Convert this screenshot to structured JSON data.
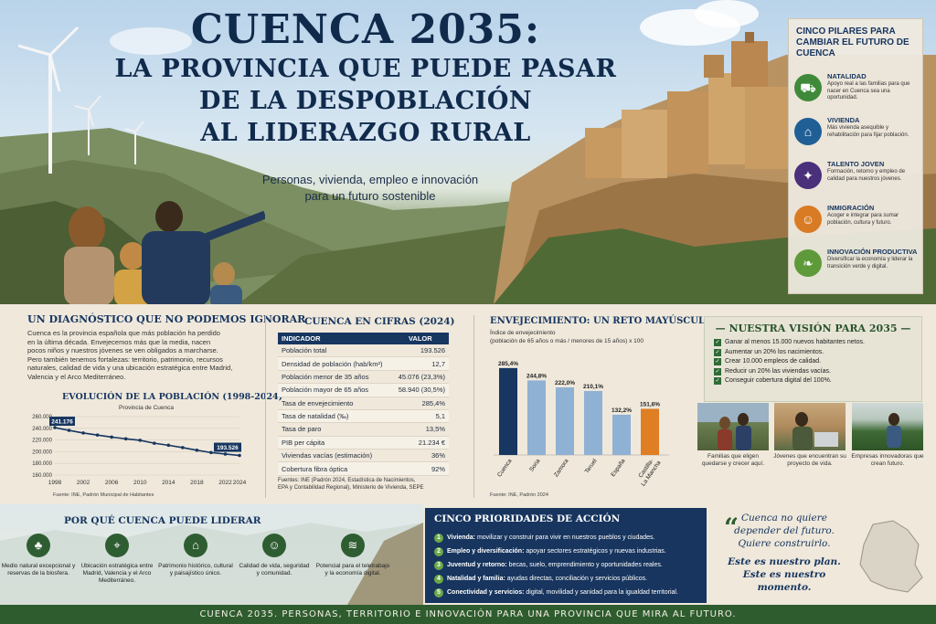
{
  "hero": {
    "title_line1": "CUENCA 2035:",
    "title_line2": "LA PROVINCIA QUE PUEDE PASAR",
    "title_line3": "DE LA DESPOBLACIÓN",
    "title_line4": "AL LIDERAZGO RURAL",
    "subtitle_line1": "Personas, vivienda, empleo e innovación",
    "subtitle_line2": "para un futuro sostenible"
  },
  "pillars": {
    "title": "CINCO PILARES PARA CAMBIAR EL FUTURO DE CUENCA",
    "items": [
      {
        "name": "NATALIDAD",
        "desc": "Apoyo real a las familias para que nacer en Cuenca sea una oportunidad.",
        "icon": "stroller-icon",
        "color": "#3f8a3a"
      },
      {
        "name": "VIVIENDA",
        "desc": "Más vivienda asequible y rehabilitación para fijar población.",
        "icon": "house-icon",
        "color": "#1f5f96"
      },
      {
        "name": "TALENTO JOVEN",
        "desc": "Formación, retorno y empleo de calidad para nuestros jóvenes.",
        "icon": "graduation-cap-icon",
        "color": "#4a2f7a"
      },
      {
        "name": "INMIGRACIÓN",
        "desc": "Acoger e integrar para sumar población, cultura y futuro.",
        "icon": "people-icon",
        "color": "#d97b24"
      },
      {
        "name": "INNOVACIÓN PRODUCTIVA",
        "desc": "Diversificar la economía y liderar la transición verde y digital.",
        "icon": "leaf-icon",
        "color": "#5e9a3a"
      }
    ]
  },
  "diagnostico": {
    "title": "UN DIAGNÓSTICO QUE NO PODEMOS IGNORAR",
    "lines": [
      "Cuenca es la provincia española que más población ha perdido",
      "en la última década. Envejecemos más que la media, nacen",
      "pocos niños y nuestros jóvenes se ven obligados a marcharse.",
      "Pero también tenemos fortalezas: territorio, patrimonio, recursos",
      "naturales, calidad de vida y una ubicación estratégica entre Madrid,",
      "Valencia y el Arco Mediterráneo."
    ]
  },
  "evolucion": {
    "title": "EVOLUCIÓN DE LA POBLACIÓN (1998-2024)",
    "subtitle": "Provincia de Cuenca",
    "source": "Fuente: INE, Padrón Municipal de Habitantes",
    "label_start": "241.176",
    "label_end": "193.526"
  },
  "cifras": {
    "title": "CUENCA EN CIFRAS (2024)",
    "col_indicator": "INDICADOR",
    "col_value": "VALOR",
    "rows": [
      [
        "Población total",
        "193.526"
      ],
      [
        "Densidad de población (hab/km²)",
        "12,7"
      ],
      [
        "Población menor de 35 años",
        "45.076 (23,3%)"
      ],
      [
        "Población mayor de 65 años",
        "58.940 (30,5%)"
      ],
      [
        "Tasa de envejecimiento",
        "285,4%"
      ],
      [
        "Tasa de natalidad (‰)",
        "5,1"
      ],
      [
        "Tasa de paro",
        "13,5%"
      ],
      [
        "PIB per cápita",
        "21.234 €"
      ],
      [
        "Viviendas vacías (estimación)",
        "36%"
      ],
      [
        "Cobertura fibra óptica",
        "92%"
      ]
    ],
    "source_line1": "Fuentes: INE (Padrón 2024, Estadística de Nacimientos,",
    "source_line2": "EPA y Contabilidad Regional), Ministerio de Vivienda, SEPE"
  },
  "chart_data": [
    {
      "type": "line",
      "title": "EVOLUCIÓN DE LA POBLACIÓN (1998-2024)",
      "subtitle": "Provincia de Cuenca",
      "x": [
        1998,
        2000,
        2002,
        2004,
        2006,
        2008,
        2010,
        2012,
        2014,
        2016,
        2018,
        2020,
        2022,
        2024
      ],
      "y": [
        241176,
        236500,
        232000,
        228500,
        225000,
        222000,
        219500,
        214500,
        211000,
        207000,
        202500,
        198500,
        196000,
        193526
      ],
      "x_ticks": [
        "1998",
        "2002",
        "2006",
        "2010",
        "2014",
        "2018",
        "2022",
        "2024"
      ],
      "y_ticks": [
        "260.000",
        "240.000",
        "220.000",
        "200.000",
        "180.000",
        "160.000"
      ],
      "ylim": [
        160000,
        260000
      ],
      "xlim": [
        1998,
        2024
      ]
    },
    {
      "type": "bar",
      "title": "ENVEJECIMIENTO: UN RETO MAYÚSCULO",
      "subtitle": "Índice de envejecimiento (población de 65 años o más / menores de 15 años) x 100",
      "categories": [
        "Cuenca",
        "Soria",
        "Zamora",
        "Teruel",
        "España",
        "Castilla-La Mancha"
      ],
      "values": [
        285.4,
        244.8,
        222.0,
        210.1,
        132.2,
        151.6
      ],
      "value_labels": [
        "285,4%",
        "244,8%",
        "222,0%",
        "210,1%",
        "132,2%",
        "151,6%"
      ],
      "colors": [
        "#173660",
        "#8fb1d3",
        "#8fb1d3",
        "#8fb1d3",
        "#8fb1d3",
        "#e07e24"
      ],
      "ylim": [
        0,
        300
      ],
      "source": "Fuente: INE, Padrón 2024"
    }
  ],
  "envejecimiento": {
    "title": "ENVEJECIMIENTO: UN RETO MAYÚSCULO",
    "subtitle_line1": "Índice de envejecimiento",
    "subtitle_line2": "(población de 65 años o más / menores de 15 años) x 100",
    "source": "Fuente: INE, Padrón 2024"
  },
  "vision": {
    "title": "NUESTRA VISIÓN PARA 2035",
    "items": [
      "Ganar al menos 15.000 nuevos habitantes netos.",
      "Aumentar un 20% los nacimientos.",
      "Crear 10.000 empleos de calidad.",
      "Reducir un 20% las viviendas vacías.",
      "Conseguir cobertura digital del 100%."
    ]
  },
  "photos": {
    "cap1": "Familias que eligen quedarse y crecer aquí.",
    "cap2": "Jóvenes que encuentran su proyecto de vida.",
    "cap3": "Empresas innovadoras que crean futuro."
  },
  "liderar": {
    "title": "POR QUÉ CUENCA PUEDE LIDERAR",
    "items": [
      {
        "text": "Medio natural excepcional y reservas de la biosfera.",
        "icon": "tree-icon"
      },
      {
        "text": "Ubicación estratégica entre Madrid, Valencia y el Arco Mediterráneo.",
        "icon": "map-pin-icon"
      },
      {
        "text": "Patrimonio histórico, cultural y paisajístico único.",
        "icon": "monument-icon"
      },
      {
        "text": "Calidad de vida, seguridad y comunidad.",
        "icon": "people-icon"
      },
      {
        "text": "Potencial para el teletrabajo y la economía digital.",
        "icon": "wifi-icon"
      }
    ]
  },
  "prioridades": {
    "title": "CINCO PRIORIDADES DE ACCIÓN",
    "items": [
      {
        "n": "1",
        "bold": "Vivienda:",
        "text": " movilizar y construir para vivir en nuestros pueblos y ciudades."
      },
      {
        "n": "2",
        "bold": "Empleo y diversificación:",
        "text": " apoyar sectores estratégicos y nuevas industrias."
      },
      {
        "n": "3",
        "bold": "Juventud y retorno:",
        "text": " becas, suelo, emprendimiento y oportunidades reales."
      },
      {
        "n": "4",
        "bold": "Natalidad y familia:",
        "text": " ayudas directas, conciliación y servicios públicos."
      },
      {
        "n": "5",
        "bold": "Conectividad y servicios:",
        "text": " digital, movilidad y sanidad para la igualdad territorial."
      }
    ]
  },
  "quote": {
    "line1": "Cuenca no quiere",
    "line2": "depender del futuro.",
    "line3": "Quiere construirlo.",
    "line4": "Este es nuestro plan.",
    "line5": "Este es nuestro momento."
  },
  "footer": {
    "text": "CUENCA 2035. PERSONAS, TERRITORIO E INNOVACIÓN PARA UNA PROVINCIA QUE MIRA AL FUTURO."
  }
}
